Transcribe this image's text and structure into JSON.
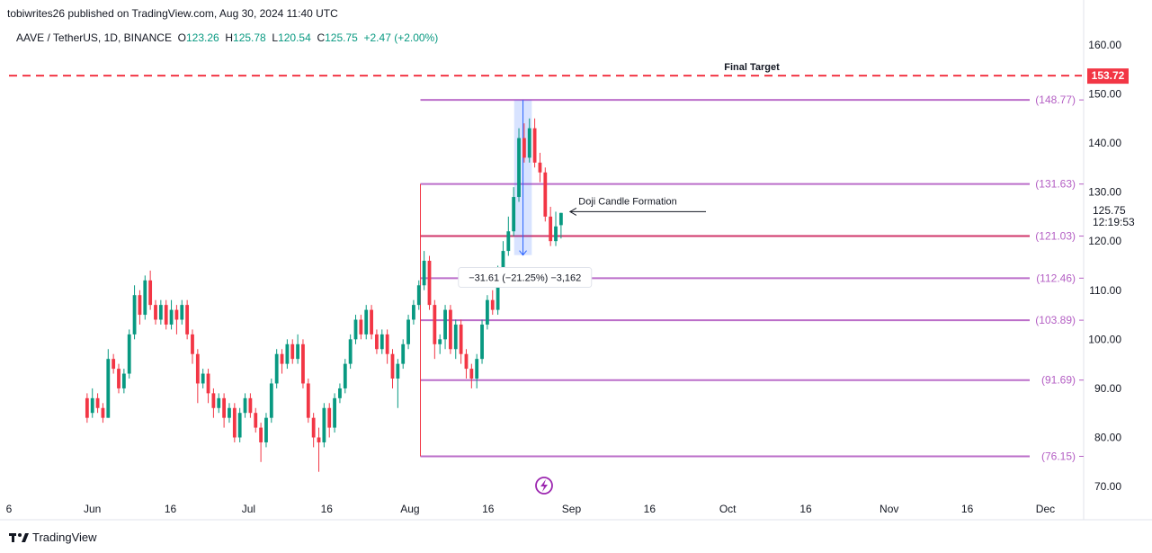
{
  "header": {
    "published": "tobiwrites26 published on TradingView.com, Aug 30, 2024 11:40 UTC"
  },
  "symbol": {
    "name": "AAVE / TetherUS, 1D, BINANCE",
    "o_label": "O",
    "o_value": "123.26",
    "h_label": "H",
    "h_value": "125.78",
    "l_label": "L",
    "l_value": "120.54",
    "c_label": "C",
    "c_value": "125.75",
    "change": "+2.47 (+2.00%)"
  },
  "footer": {
    "brand": "TradingView"
  },
  "colors": {
    "up": "#089981",
    "down": "#f23645",
    "fib": "#b45fc4",
    "target": "#f23645",
    "pivot": "#cc1f5a",
    "range": "#2962ff"
  },
  "chart_data": {
    "type": "candlestick",
    "y_range": [
      68,
      164
    ],
    "y_ticks": [
      70,
      80,
      90,
      100,
      110,
      120,
      130,
      140,
      150,
      160
    ],
    "y_tick_labels": [
      "70.00",
      "80.00",
      "90.00",
      "100.00",
      "110.00",
      "120.00",
      "130.00",
      "140.00",
      "150.00",
      "160.00"
    ],
    "x_ticks": [
      {
        "date": "2024-05-16",
        "label": "6"
      },
      {
        "date": "2024-06-01",
        "label": "Jun"
      },
      {
        "date": "2024-06-16",
        "label": "16"
      },
      {
        "date": "2024-07-01",
        "label": "Jul"
      },
      {
        "date": "2024-07-16",
        "label": "16"
      },
      {
        "date": "2024-08-01",
        "label": "Aug"
      },
      {
        "date": "2024-08-16",
        "label": "16"
      },
      {
        "date": "2024-09-01",
        "label": "Sep"
      },
      {
        "date": "2024-09-16",
        "label": "16"
      },
      {
        "date": "2024-10-01",
        "label": "Oct"
      },
      {
        "date": "2024-10-16",
        "label": "16"
      },
      {
        "date": "2024-11-01",
        "label": "Nov"
      },
      {
        "date": "2024-11-16",
        "label": "16"
      },
      {
        "date": "2024-12-01",
        "label": "Dec"
      }
    ],
    "x_range": [
      "2024-05-16",
      "2024-12-08"
    ],
    "candles": [
      [
        88,
        84,
        89,
        83
      ],
      [
        85,
        88,
        90,
        84
      ],
      [
        88,
        86,
        89,
        85
      ],
      [
        86,
        84,
        87,
        83
      ],
      [
        84,
        96,
        98,
        84
      ],
      [
        96,
        94,
        97,
        93
      ],
      [
        94,
        90,
        95,
        89
      ],
      [
        90,
        93,
        94,
        89
      ],
      [
        93,
        101,
        102,
        92
      ],
      [
        101,
        109,
        111,
        100
      ],
      [
        109,
        105,
        110,
        103
      ],
      [
        105,
        112,
        113,
        104
      ],
      [
        112,
        107,
        114,
        106
      ],
      [
        107,
        104,
        108,
        103
      ],
      [
        104,
        107,
        108,
        103
      ],
      [
        107,
        103,
        108,
        102
      ],
      [
        103,
        106,
        108,
        102
      ],
      [
        106,
        104,
        107,
        101
      ],
      [
        104,
        107,
        108,
        103
      ],
      [
        107,
        101,
        108,
        100
      ],
      [
        101,
        97,
        102,
        95
      ],
      [
        97,
        91,
        98,
        87
      ],
      [
        91,
        93,
        94,
        90
      ],
      [
        93,
        89,
        94,
        87
      ],
      [
        89,
        86,
        90,
        84
      ],
      [
        86,
        88,
        89,
        85
      ],
      [
        88,
        84,
        89,
        82
      ],
      [
        84,
        86,
        87,
        83
      ],
      [
        86,
        80,
        87,
        79
      ],
      [
        80,
        85,
        86,
        79
      ],
      [
        85,
        88,
        89,
        84
      ],
      [
        88,
        85,
        89,
        84
      ],
      [
        85,
        82,
        86,
        81
      ],
      [
        82,
        79,
        83,
        75
      ],
      [
        79,
        84,
        85,
        78
      ],
      [
        84,
        91,
        92,
        83
      ],
      [
        91,
        97,
        98,
        90
      ],
      [
        97,
        95,
        98,
        93
      ],
      [
        95,
        99,
        100,
        94
      ],
      [
        99,
        96,
        100,
        95
      ],
      [
        96,
        99,
        101,
        95
      ],
      [
        99,
        91,
        100,
        90
      ],
      [
        91,
        84,
        92,
        83
      ],
      [
        84,
        80,
        85,
        78
      ],
      [
        80,
        79,
        82,
        73
      ],
      [
        79,
        86,
        87,
        78
      ],
      [
        86,
        82,
        87,
        80
      ],
      [
        82,
        88,
        89,
        81
      ],
      [
        88,
        90,
        91,
        87
      ],
      [
        90,
        95,
        96,
        89
      ],
      [
        95,
        100,
        101,
        94
      ],
      [
        100,
        104,
        105,
        99
      ],
      [
        104,
        101,
        105,
        100
      ],
      [
        101,
        106,
        107,
        100
      ],
      [
        106,
        101,
        107,
        100
      ],
      [
        101,
        98,
        102,
        97
      ],
      [
        98,
        101,
        102,
        97
      ],
      [
        101,
        97,
        102,
        95
      ],
      [
        97,
        92,
        98,
        90
      ],
      [
        92,
        95,
        96,
        86
      ],
      [
        95,
        99,
        100,
        94
      ],
      [
        99,
        104,
        105,
        98
      ],
      [
        104,
        107,
        108,
        103
      ],
      [
        107,
        111,
        112,
        106
      ],
      [
        111,
        116,
        118,
        110
      ],
      [
        116,
        107,
        117,
        106
      ],
      [
        107,
        99,
        108,
        96
      ],
      [
        99,
        100,
        101,
        97
      ],
      [
        100,
        106,
        107,
        98
      ],
      [
        106,
        98,
        107,
        97
      ],
      [
        98,
        103,
        104,
        96
      ],
      [
        103,
        97,
        104,
        95
      ],
      [
        97,
        94,
        98,
        92
      ],
      [
        94,
        92,
        95,
        90
      ],
      [
        92,
        96,
        97,
        90
      ],
      [
        96,
        103,
        104,
        95
      ],
      [
        103,
        108,
        109,
        102
      ],
      [
        108,
        106,
        110,
        105
      ],
      [
        106,
        113,
        115,
        105
      ],
      [
        113,
        118,
        120,
        112
      ],
      [
        118,
        122,
        125,
        117
      ],
      [
        122,
        129,
        131,
        121
      ],
      [
        129,
        141,
        143,
        128
      ],
      [
        141,
        137,
        144,
        136
      ],
      [
        137,
        143,
        145,
        136
      ],
      [
        143,
        136,
        145,
        135
      ],
      [
        136,
        134,
        138,
        132
      ],
      [
        134,
        125,
        135,
        124
      ],
      [
        125,
        120,
        127,
        119
      ],
      [
        120,
        123,
        126,
        119
      ],
      [
        123.26,
        125.75,
        125.78,
        120.54
      ]
    ],
    "candles_start_date": "2024-05-31",
    "candles_end_date": "2024-08-30",
    "fib_levels": [
      {
        "value": 148.77,
        "label": "(148.77)"
      },
      {
        "value": 131.63,
        "label": "(131.63)"
      },
      {
        "value": 121.03,
        "label": "(121.03)"
      },
      {
        "value": 112.46,
        "label": "(112.46)"
      },
      {
        "value": 103.89,
        "label": "(103.89)"
      },
      {
        "value": 91.69,
        "label": "(91.69)"
      },
      {
        "value": 76.15,
        "label": "(76.15)"
      }
    ],
    "target": {
      "value": 153.72,
      "label": "153.72",
      "text": "Final Target"
    },
    "last_price": {
      "value": 125.75,
      "label": "125.75",
      "countdown": "12:19:53"
    },
    "range_measure": {
      "from": 148.77,
      "to": 117.16,
      "label": "−3 … (−21.25%) −3,162",
      "label_full": "−31.61 (−21.25%) −3,162",
      "start_date": "2024-08-21",
      "end_date": "2024-08-23"
    },
    "annotation": {
      "text": "Doji Candle Formation",
      "date": "2024-08-30",
      "value": 126
    }
  }
}
